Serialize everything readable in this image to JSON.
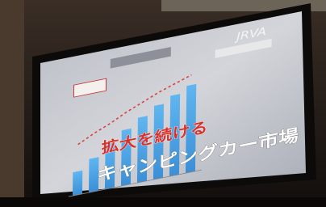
{
  "slide": {
    "logo": "JRVA",
    "headline": "拡大を続ける",
    "subheadline": "キャンピングカー市場"
  }
}
